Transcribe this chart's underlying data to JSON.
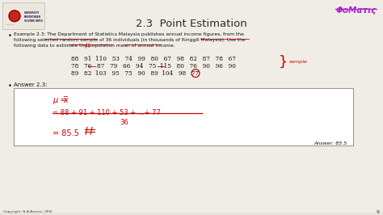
{
  "title": "2.3  Point Estimation",
  "background_color": "#e8e4dc",
  "slide_bg": "#f8f7f4",
  "example_line1": "Example 2.3: The Department of Statistics Malaysia publishes annual income figures, from the",
  "example_line2": "following selected random sample of 36 individuals (in thousands of Ringgit Malaysia). Use the",
  "example_line3": "following data to estimate the population mean of annual income.",
  "data_row1": "88   91  110   53   74   99   80   67   98   82   87   78   67",
  "data_row2": "78   76   87   79   66   94   75  115   80   76   90   96   90",
  "data_row3": "89   82  103   95   75   90   89  104   98   77",
  "answer_label": "Answer 2.3:",
  "answer_note": "Answer: 85.5",
  "copyright": "Copyright: N.A.Azmee, UPSl",
  "page_number": "9",
  "logo_text": "ΦοΜατις",
  "title_color": "#2a2a2a",
  "body_color": "#111111",
  "red_color": "#cc0000",
  "purple_color": "#aa22cc",
  "box_border": "#999999",
  "handwriting_color": "#cc0000",
  "underline_red": "#cc0000",
  "white": "#ffffff"
}
